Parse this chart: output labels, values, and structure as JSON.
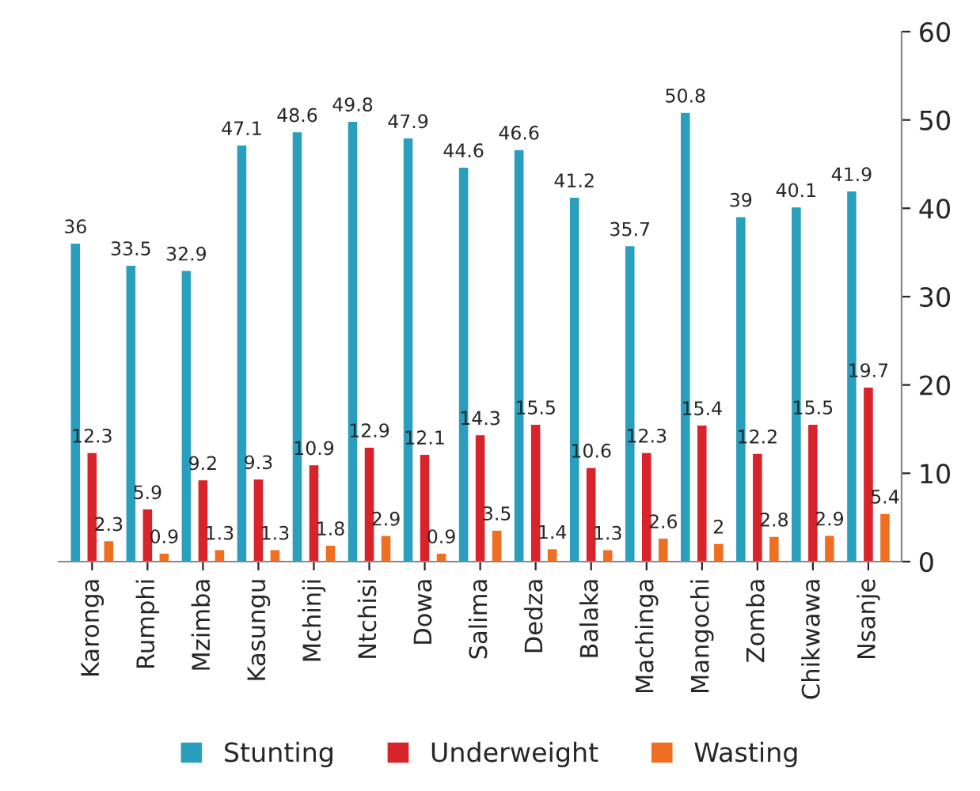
{
  "chart_data": {
    "type": "bar",
    "categories": [
      "Karonga",
      "Rumphi",
      "Mzimba",
      "Kasungu",
      "Mchinji",
      "Ntchisi",
      "Dowa",
      "Salima",
      "Dedza",
      "Balaka",
      "Machinga",
      "Mangochi",
      "Zomba",
      "Chikwawa",
      "Nsanje"
    ],
    "series": [
      {
        "name": "Stunting",
        "color": "#2a9fbd",
        "values": [
          36,
          33.5,
          32.9,
          47.1,
          48.6,
          49.8,
          47.9,
          44.6,
          46.6,
          41.2,
          35.7,
          50.8,
          39,
          40.1,
          41.9
        ]
      },
      {
        "name": "Underweight",
        "color": "#d9232a",
        "values": [
          12.3,
          5.9,
          9.2,
          9.3,
          10.9,
          12.9,
          12.1,
          14.3,
          15.5,
          10.6,
          12.3,
          15.4,
          12.2,
          15.5,
          19.7
        ]
      },
      {
        "name": "Wasting",
        "color": "#ee6f22",
        "values": [
          2.3,
          0.9,
          1.3,
          1.3,
          1.8,
          2.9,
          0.9,
          3.5,
          1.4,
          1.3,
          2.6,
          2,
          2.8,
          2.9,
          5.4
        ]
      }
    ],
    "ylim": [
      0,
      60
    ],
    "yticks": [
      0,
      10,
      20,
      30,
      40,
      50,
      60
    ],
    "data_labels": true,
    "grid": false,
    "legend": "bottom"
  }
}
